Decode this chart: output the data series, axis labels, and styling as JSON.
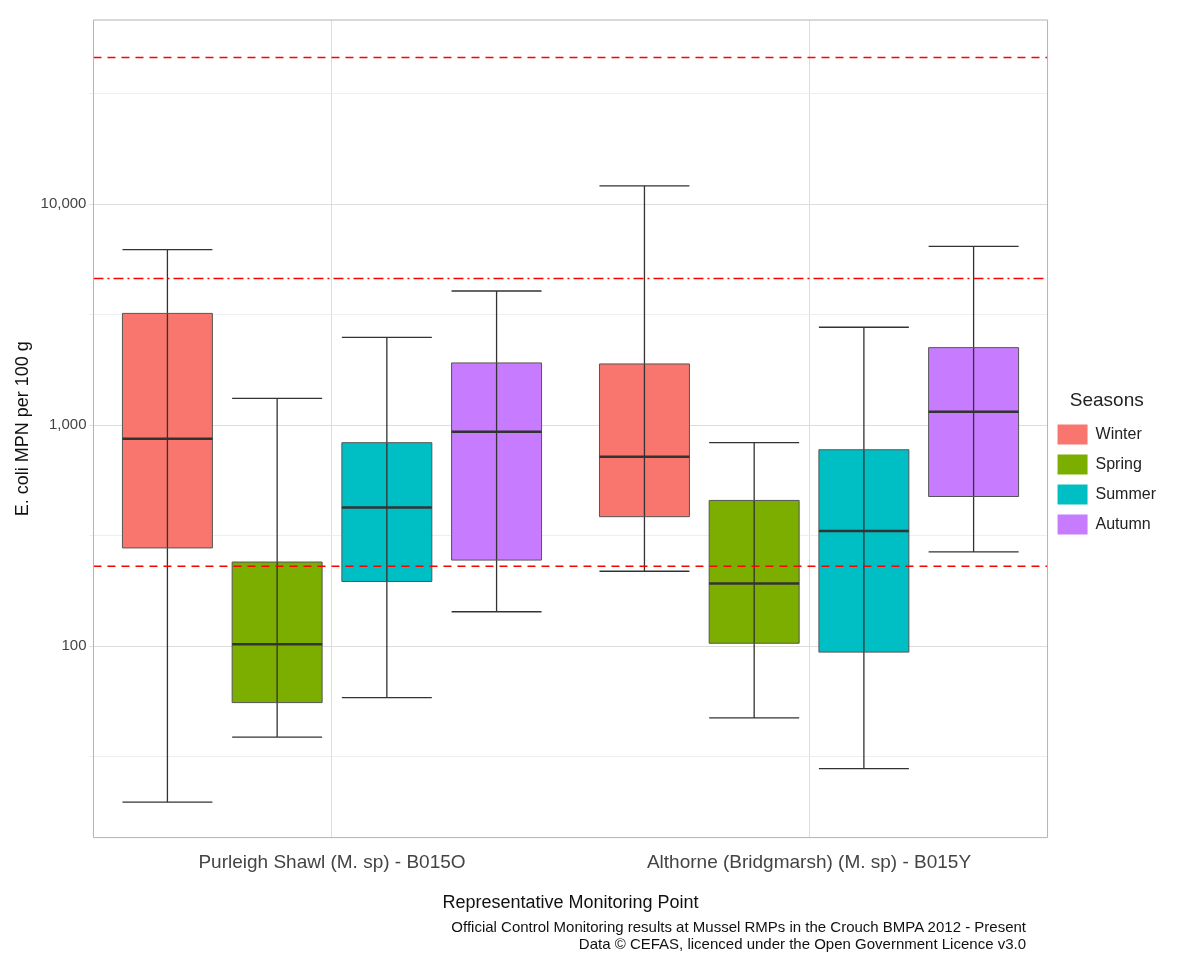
{
  "chart_data": {
    "type": "box",
    "xlabel": "Representative Monitoring Point",
    "ylabel": "E. coli MPN per 100 g",
    "legend_title": "Seasons",
    "legend": "right",
    "grid": true,
    "log": true,
    "categories": [
      "Purleigh Shawl (M. sp) - B015O",
      "Althorne (Bridgmarsh) (M. sp) - B015Y"
    ],
    "ylim": [
      13.6,
      68000
    ],
    "yticks": [
      {
        "value": 31.6,
        "label": null
      },
      {
        "value": 100,
        "label": "100"
      },
      {
        "value": 316,
        "label": null
      },
      {
        "value": 1000,
        "label": "1,000"
      },
      {
        "value": 3160,
        "label": null
      },
      {
        "value": 10000,
        "label": "10,000"
      },
      {
        "value": 31600,
        "label": null
      }
    ],
    "series": [
      {
        "name": "Winter",
        "color": "#f8766d",
        "boxes": [
          {
            "low": 19.7,
            "q1": 278,
            "median": 867,
            "q3": 3200,
            "high": 6220
          },
          {
            "low": 218,
            "q1": 385,
            "median": 718,
            "q3": 1890,
            "high": 12080
          }
        ]
      },
      {
        "name": "Spring",
        "color": "#7cae00",
        "boxes": [
          {
            "low": 38.7,
            "q1": 55.5,
            "median": 102,
            "q3": 240,
            "high": 1320
          },
          {
            "low": 47.3,
            "q1": 103,
            "median": 192,
            "q3": 456,
            "high": 832
          }
        ]
      },
      {
        "name": "Summer",
        "color": "#00bfc4",
        "boxes": [
          {
            "low": 58.5,
            "q1": 196,
            "median": 424,
            "q3": 832,
            "high": 2490
          },
          {
            "low": 27.9,
            "q1": 93.9,
            "median": 332,
            "q3": 773,
            "high": 2770
          }
        ]
      },
      {
        "name": "Autumn",
        "color": "#c77cff",
        "boxes": [
          {
            "low": 143,
            "q1": 245,
            "median": 933,
            "q3": 1910,
            "high": 4040
          },
          {
            "low": 267,
            "q1": 475,
            "median": 1150,
            "q3": 2240,
            "high": 6430
          }
        ]
      }
    ],
    "ref_lines": [
      {
        "axis": "y",
        "value": 46000,
        "color": "#ff0000",
        "line_style": "dashed"
      },
      {
        "axis": "y",
        "value": 4600,
        "color": "#ff0000",
        "line_style": "dashdot"
      },
      {
        "axis": "y",
        "value": 230,
        "color": "#ff0000",
        "line_style": "dashed"
      }
    ],
    "annotations": [
      "Official Control Monitoring results at Mussel RMPs in the Crouch BMPA 2012 - Present",
      "Data © CEFAS, licenced under the Open Government Licence v3.0"
    ]
  }
}
